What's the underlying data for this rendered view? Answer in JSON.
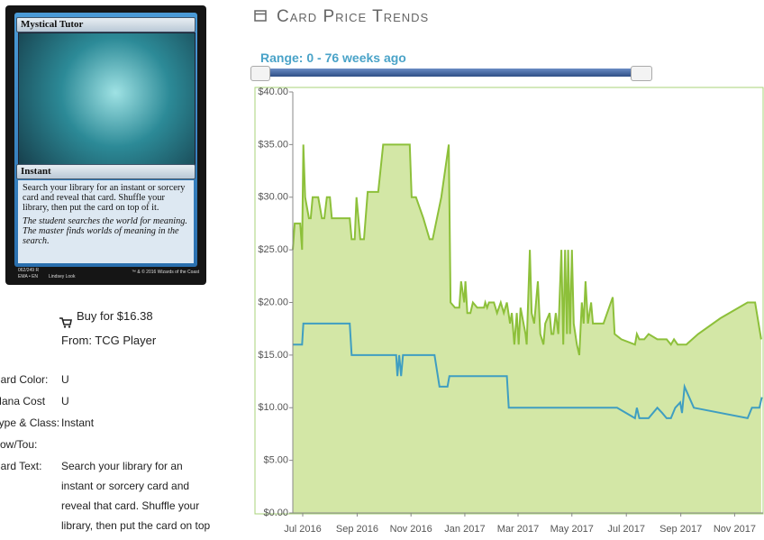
{
  "card": {
    "title": "Mystical Tutor",
    "type": "Instant",
    "text": "Search your library for an instant or sorcery card and reveal that card. Shuffle your library, then put the card on top of it.",
    "flavor": "The student searches the world for meaning. The master finds worlds of meaning in the search.",
    "number": "062/249 R",
    "set": "EMA • EN",
    "artist": "Lindsey Look",
    "copyright": "™ & © 2016 Wizards of the Coast"
  },
  "buy": {
    "label": "Buy for $16.38",
    "source": "From: TCG Player"
  },
  "details": [
    {
      "label": "Card Color:",
      "value": "U"
    },
    {
      "label": "Mana Cost",
      "value": "U"
    },
    {
      "label": "Type & Class:",
      "value": "Instant"
    },
    {
      "label": "Pow/Tou:",
      "value": ""
    },
    {
      "label": "Card Text:",
      "value": "Search your library for an instant or sorcery card and reveal that card. Shuffle your library, then put the card on top"
    }
  ],
  "section_title": "Card Price Trends",
  "range_label": "Range: 0 - 76 weeks ago",
  "chart_data": {
    "type": "area",
    "xlim": [
      0,
      76
    ],
    "xticks": [
      {
        "value": 1.6,
        "label": "Jul 2016"
      },
      {
        "value": 10.4,
        "label": "Sep 2016"
      },
      {
        "value": 19.1,
        "label": "Nov 2016"
      },
      {
        "value": 27.8,
        "label": "Jan 2017"
      },
      {
        "value": 36.4,
        "label": "Mar 2017"
      },
      {
        "value": 45.1,
        "label": "May 2017"
      },
      {
        "value": 53.9,
        "label": "Jul 2017"
      },
      {
        "value": 62.7,
        "label": "Sep 2017"
      },
      {
        "value": 71.4,
        "label": "Nov 2017"
      }
    ],
    "ylim": [
      0,
      40
    ],
    "yticks": [
      {
        "value": 0,
        "label": "$0.00"
      },
      {
        "value": 5,
        "label": "$5.00"
      },
      {
        "value": 10,
        "label": "$10.00"
      },
      {
        "value": 15,
        "label": "$15.00"
      },
      {
        "value": 20,
        "label": "$20.00"
      },
      {
        "value": 25,
        "label": "$25.00"
      },
      {
        "value": 30,
        "label": "$30.00"
      },
      {
        "value": 35,
        "label": "$35.00"
      },
      {
        "value": 40,
        "label": "$40.00"
      }
    ],
    "grid": false,
    "series": [
      {
        "color": "#8dc03a",
        "fill": "#d3e7a6",
        "x": [
          0,
          0.3,
          1.2,
          1.5,
          1.7,
          2.0,
          2.6,
          2.9,
          3.2,
          4.1,
          4.7,
          5.1,
          5.5,
          6.0,
          6.3,
          6.8,
          9.2,
          9.5,
          10.0,
          10.3,
          10.9,
          11.5,
          12.1,
          13.8,
          14.6,
          18.9,
          19.2,
          19.9,
          21.1,
          22.1,
          22.6,
          24.0,
          25.2,
          25.5,
          26.2,
          26.9,
          27.2,
          27.7,
          27.9,
          28.2,
          28.7,
          29.1,
          29.8,
          30.9,
          31.1,
          31.4,
          31.7,
          32.5,
          33.0,
          33.6,
          34.1,
          34.6,
          35.1,
          35.4,
          35.8,
          36.2,
          36.5,
          36.8,
          37.6,
          37.8,
          38.3,
          38.6,
          39.0,
          39.6,
          40.0,
          40.5,
          40.8,
          41.5,
          41.8,
          42.1,
          42.5,
          42.9,
          43.4,
          43.7,
          44.0,
          44.3,
          44.5,
          44.8,
          45.1,
          45.4,
          45.9,
          46.3,
          46.7,
          47.0,
          47.3,
          47.7,
          48.2,
          48.5,
          48.9,
          50.2,
          51.7,
          52.0,
          53.1,
          55.3,
          55.6,
          56.0,
          56.8,
          57.5,
          58.9,
          60.4,
          61.1,
          61.6,
          62.2,
          63.6,
          65.5,
          69.1,
          73.5,
          74.7,
          75.7
        ],
        "values": [
          25,
          27.5,
          27.5,
          25,
          35,
          30,
          28,
          28,
          30,
          30,
          28,
          28,
          30,
          30,
          28,
          28,
          28,
          26,
          26,
          30,
          26,
          26,
          30.5,
          30.5,
          35,
          35,
          30,
          30,
          28,
          26,
          26,
          30,
          35,
          20,
          19.5,
          19.5,
          22,
          20,
          22,
          19,
          19,
          20,
          19.5,
          19.5,
          20,
          19.5,
          20,
          20,
          19,
          20,
          19,
          20,
          18,
          19,
          16,
          19,
          16,
          19.5,
          17,
          16,
          25,
          19,
          18,
          22,
          17,
          16,
          18,
          19,
          17,
          17,
          19,
          17,
          25,
          16,
          25,
          17,
          25,
          17,
          25,
          18,
          16,
          15,
          20,
          18,
          22,
          18,
          20,
          18,
          18,
          18,
          20.5,
          17,
          16.5,
          16,
          17,
          16.5,
          16.5,
          17,
          16.5,
          16.5,
          16,
          16.5,
          16,
          16,
          17,
          18.5,
          20,
          20,
          16.5
        ]
      },
      {
        "color": "#3f9ec1",
        "x": [
          0,
          1.5,
          1.7,
          9.2,
          9.5,
          16.7,
          16.9,
          17.2,
          17.5,
          17.8,
          22.9,
          23.7,
          25.0,
          25.3,
          34.6,
          34.9,
          52.4,
          55.3,
          55.6,
          56.0,
          57.5,
          58.9,
          59.7,
          60.4,
          61.1,
          61.8,
          62.6,
          62.9,
          63.3,
          64.8,
          73.5,
          74.2,
          75.4,
          75.8
        ],
        "values": [
          16,
          16,
          18,
          18,
          15,
          15,
          13,
          15,
          13,
          15,
          15,
          12,
          12,
          13,
          13,
          10,
          10,
          9,
          10,
          9,
          9,
          10,
          9.5,
          9,
          9,
          10,
          10.5,
          9.5,
          12,
          10,
          9,
          10,
          10,
          11
        ]
      }
    ]
  }
}
